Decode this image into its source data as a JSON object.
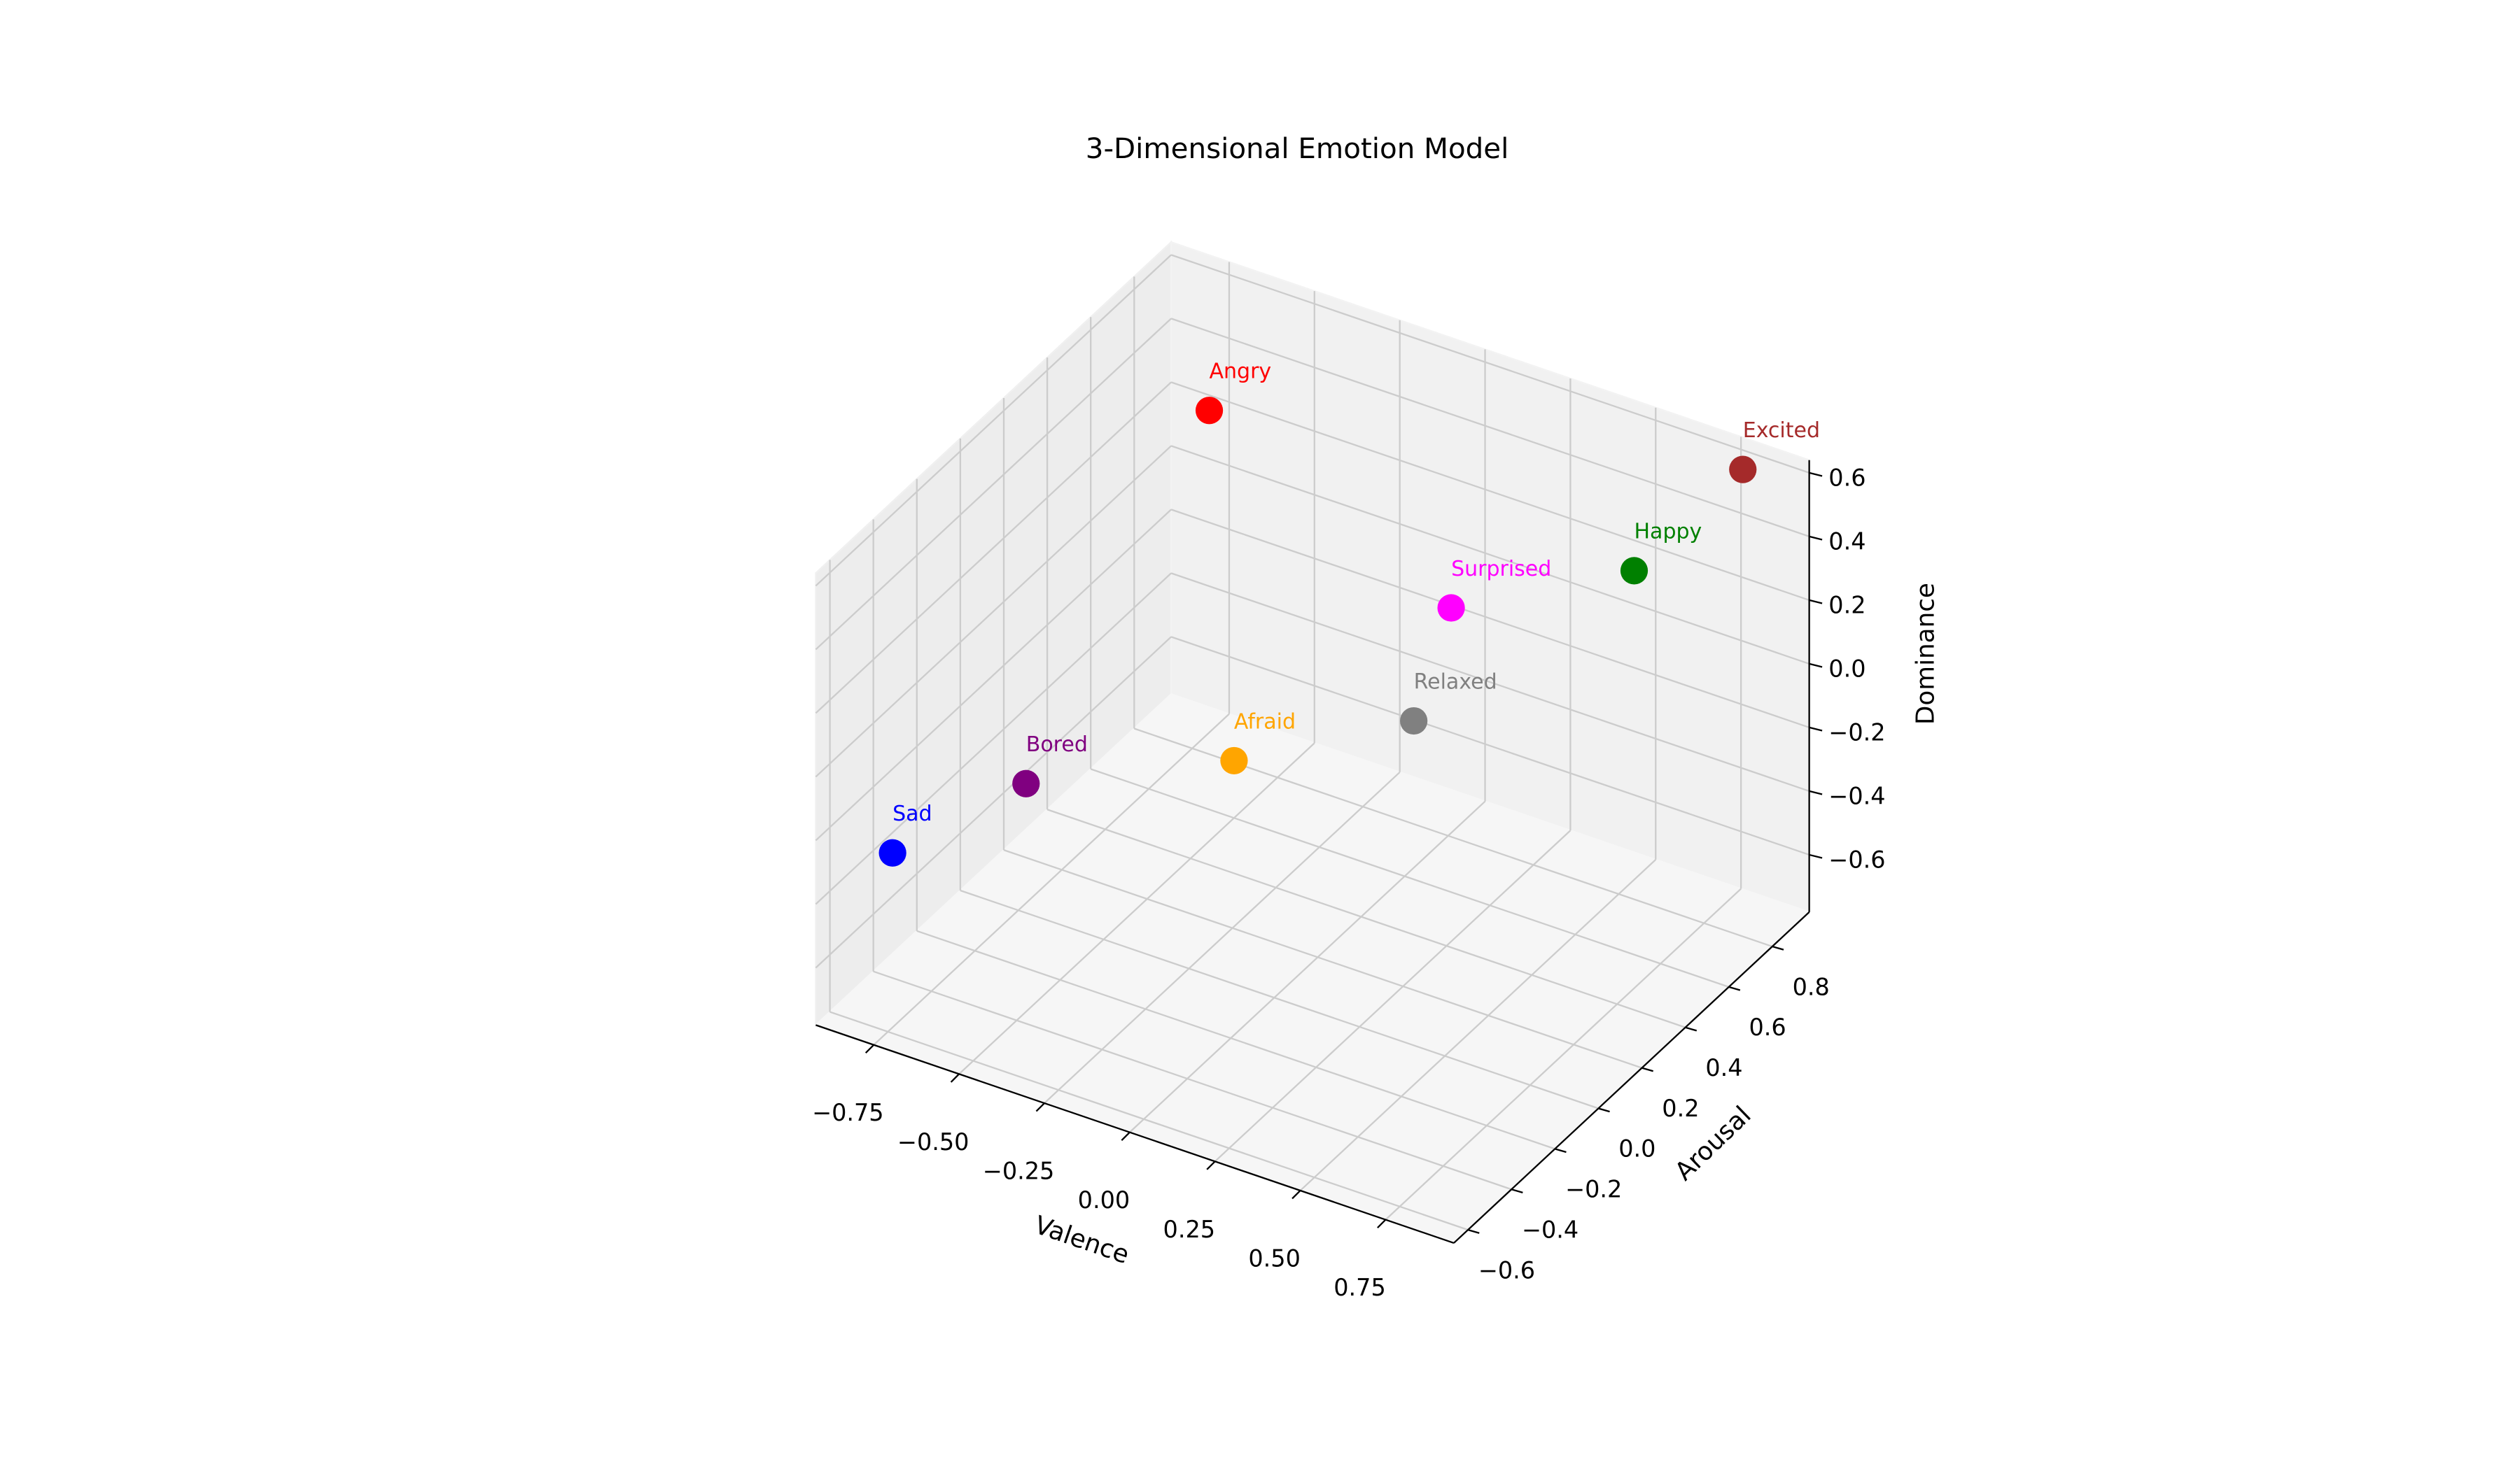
{
  "chart_data": {
    "type": "scatter3d",
    "title": "3-Dimensional Emotion Model",
    "xlabel": "Valence",
    "ylabel": "Arousal",
    "zlabel": "Dominance",
    "labels": [
      "Happy",
      "Sad",
      "Angry",
      "Relaxed",
      "Excited",
      "Bored",
      "Afraid",
      "Surprised"
    ],
    "colors": [
      "green",
      "blue",
      "red",
      "gray",
      "brown",
      "purple",
      "orange",
      "magenta"
    ],
    "x": [
      0.8,
      -0.8,
      -0.7,
      0.6,
      0.8,
      -0.6,
      -0.5,
      0.2
    ],
    "y": [
      0.4,
      -0.5,
      0.8,
      -0.3,
      0.9,
      -0.2,
      0.6,
      0.5
    ],
    "z": [
      0.6,
      -0.3,
      0.3,
      0.5,
      0.6,
      -0.2,
      -0.6,
      0.2
    ],
    "xlim": [
      -0.92,
      0.95
    ],
    "ylim": [
      -0.665,
      0.97
    ],
    "zlim": [
      -0.78,
      0.64
    ],
    "xticks": [
      {
        "value": -0.75,
        "label": "−0.75"
      },
      {
        "value": -0.5,
        "label": "−0.50"
      },
      {
        "value": -0.25,
        "label": "−0.25"
      },
      {
        "value": 0,
        "label": "0.00"
      },
      {
        "value": 0.25,
        "label": "0.25"
      },
      {
        "value": 0.5,
        "label": "0.50"
      },
      {
        "value": 0.75,
        "label": "0.75"
      }
    ],
    "yticks": [
      {
        "value": -0.6,
        "label": "−0.6"
      },
      {
        "value": -0.4,
        "label": "−0.4"
      },
      {
        "value": -0.2,
        "label": "−0.2"
      },
      {
        "value": 0,
        "label": "0.0"
      },
      0.2,
      0.4,
      0.6,
      0.8
    ],
    "zticks": [
      {
        "value": -0.6,
        "label": "−0.6"
      },
      {
        "value": -0.4,
        "label": "−0.4"
      },
      {
        "value": -0.2,
        "label": "−0.2"
      },
      {
        "value": 0,
        "label": "0.0"
      },
      0.2,
      0.4,
      0.6
    ],
    "grid": true
  }
}
